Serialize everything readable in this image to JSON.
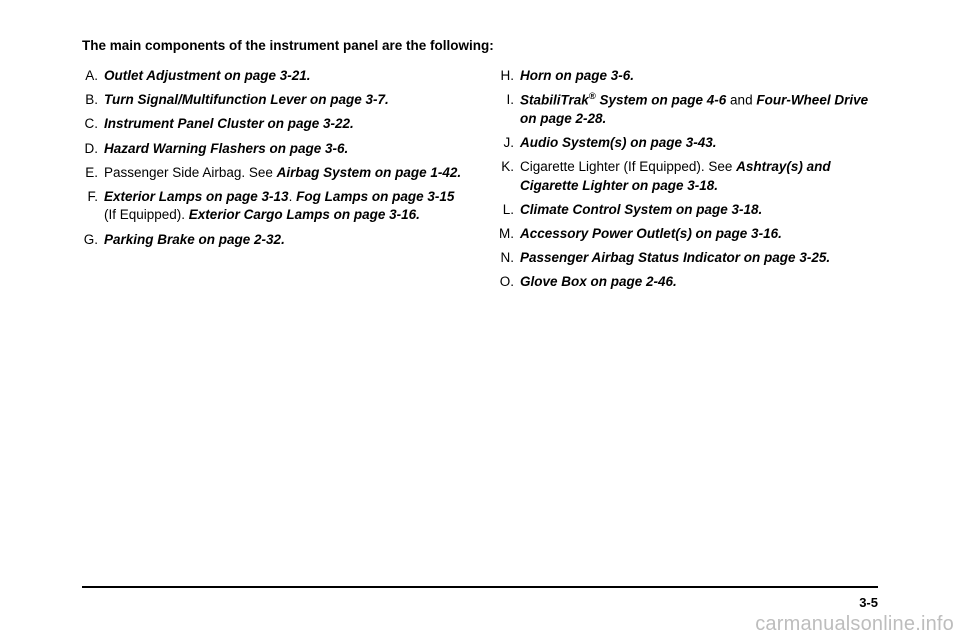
{
  "intro": "The main components of the instrument panel are the following:",
  "left": [
    {
      "letter": "A.",
      "segments": [
        {
          "t": "Outlet Adjustment on page 3-21.",
          "style": "ital"
        }
      ]
    },
    {
      "letter": "B.",
      "segments": [
        {
          "t": "Turn Signal/Multifunction Lever on page 3-7.",
          "style": "ital"
        }
      ]
    },
    {
      "letter": "C.",
      "segments": [
        {
          "t": "Instrument Panel Cluster on page 3-22.",
          "style": "ital"
        }
      ]
    },
    {
      "letter": "D.",
      "segments": [
        {
          "t": "Hazard Warning Flashers on page 3-6.",
          "style": "ital"
        }
      ]
    },
    {
      "letter": "E.",
      "segments": [
        {
          "t": "Passenger Side Airbag. See ",
          "style": "plain"
        },
        {
          "t": "Airbag System on page 1-42.",
          "style": "ital"
        }
      ]
    },
    {
      "letter": "F.",
      "segments": [
        {
          "t": "Exterior Lamps on page 3-13",
          "style": "ital"
        },
        {
          "t": ". ",
          "style": "plain"
        },
        {
          "t": "Fog Lamps on page 3-15",
          "style": "ital"
        },
        {
          "t": " (If Equipped). ",
          "style": "plain"
        },
        {
          "t": "Exterior Cargo Lamps on page 3-16.",
          "style": "ital"
        }
      ]
    },
    {
      "letter": "G.",
      "segments": [
        {
          "t": "Parking Brake on page 2-32.",
          "style": "ital"
        }
      ]
    }
  ],
  "right": [
    {
      "letter": "H.",
      "segments": [
        {
          "t": "Horn on page 3-6.",
          "style": "ital"
        }
      ]
    },
    {
      "letter": "I.",
      "segments": [
        {
          "t": "StabiliTrak",
          "style": "ital"
        },
        {
          "t": "®",
          "style": "ital",
          "sup": true
        },
        {
          "t": " System on page 4-6",
          "style": "ital"
        },
        {
          "t": " and ",
          "style": "plain"
        },
        {
          "t": "Four-Wheel Drive on page 2-28.",
          "style": "ital"
        }
      ]
    },
    {
      "letter": "J.",
      "segments": [
        {
          "t": "Audio System(s) on page 3-43.",
          "style": "ital"
        }
      ]
    },
    {
      "letter": "K.",
      "segments": [
        {
          "t": "Cigarette Lighter (If Equipped). See ",
          "style": "plain"
        },
        {
          "t": "Ashtray(s) and Cigarette Lighter on page 3-18.",
          "style": "ital"
        }
      ]
    },
    {
      "letter": "L.",
      "segments": [
        {
          "t": "Climate Control System on page 3-18.",
          "style": "ital"
        }
      ]
    },
    {
      "letter": "M.",
      "segments": [
        {
          "t": "Accessory Power Outlet(s) on page 3-16.",
          "style": "ital"
        }
      ]
    },
    {
      "letter": "N.",
      "segments": [
        {
          "t": "Passenger Airbag Status Indicator on page 3-25.",
          "style": "ital"
        }
      ]
    },
    {
      "letter": "O.",
      "segments": [
        {
          "t": "Glove Box on page 2-46.",
          "style": "ital"
        }
      ]
    }
  ],
  "pageNumber": "3-5",
  "watermark": "carmanualsonline.info"
}
